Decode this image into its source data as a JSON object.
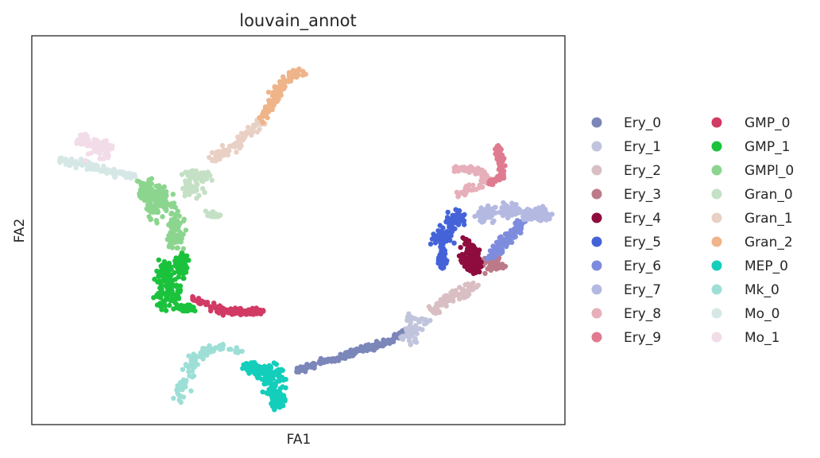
{
  "chart_data": {
    "type": "scatter",
    "title": "louvain_annot",
    "xlabel": "FA1",
    "ylabel": "FA2",
    "xlim": [
      0,
      100
    ],
    "ylim": [
      0,
      100
    ],
    "grid": false,
    "legend_placement": "right, two columns",
    "series": [
      {
        "name": "Ery_0",
        "color": "#7b86b9",
        "n": 180,
        "path": [
          [
            50,
            14
          ],
          [
            54,
            16
          ],
          [
            58,
            17
          ],
          [
            61,
            19
          ],
          [
            64,
            20
          ],
          [
            68,
            22
          ],
          [
            70,
            24
          ]
        ],
        "spread": 0.6
      },
      {
        "name": "Ery_1",
        "color": "#c0c4dc",
        "n": 60,
        "blobs": [
          [
            72,
            26,
            2.0,
            2.5
          ],
          [
            71,
            23,
            1.2,
            2.0
          ]
        ]
      },
      {
        "name": "Ery_2",
        "color": "#d9bfc3",
        "n": 90,
        "path": [
          [
            75,
            29
          ],
          [
            78,
            32
          ],
          [
            81,
            34
          ],
          [
            83,
            36
          ]
        ],
        "spread": 1.2
      },
      {
        "name": "Ery_3",
        "color": "#bc7a88",
        "n": 70,
        "blobs": [
          [
            84,
            41,
            2.2,
            2.0
          ],
          [
            87,
            41,
            1.5,
            1.5
          ]
        ]
      },
      {
        "name": "Ery_4",
        "color": "#8e0c3e",
        "n": 130,
        "blobs": [
          [
            82,
            44,
            1.6,
            3.2
          ],
          [
            83,
            41,
            1.2,
            2.0
          ]
        ]
      },
      {
        "name": "Ery_5",
        "color": "#4563d9",
        "n": 150,
        "blobs": [
          [
            77,
            48,
            1.6,
            2.2
          ],
          [
            79.5,
            53,
            1.4,
            1.8
          ],
          [
            77,
            43,
            0.6,
            2.5
          ]
        ]
      },
      {
        "name": "Ery_6",
        "color": "#7e8cde",
        "n": 110,
        "path": [
          [
            86,
            43
          ],
          [
            88,
            46
          ],
          [
            90,
            49
          ],
          [
            92,
            52
          ]
        ],
        "spread": 1.0
      },
      {
        "name": "Ery_7",
        "color": "#b4b9e2",
        "n": 190,
        "blobs": [
          [
            90,
            55,
            2.2,
            1.5
          ],
          [
            95,
            54,
            2.2,
            1.5
          ],
          [
            85,
            54,
            1.5,
            1.6
          ]
        ]
      },
      {
        "name": "Ery_8",
        "color": "#e6afb9",
        "n": 90,
        "path": [
          [
            79,
            66
          ],
          [
            82,
            66
          ],
          [
            84,
            65
          ],
          [
            86,
            62
          ],
          [
            82,
            61
          ],
          [
            80,
            59
          ]
        ],
        "spread": 0.8
      },
      {
        "name": "Ery_9",
        "color": "#e07a90",
        "n": 80,
        "path": [
          [
            87,
            72
          ],
          [
            88,
            68
          ],
          [
            88,
            64
          ],
          [
            86,
            62
          ]
        ],
        "spread": 0.6
      },
      {
        "name": "GMP_0",
        "color": "#d13a64",
        "n": 130,
        "path": [
          [
            30,
            33
          ],
          [
            34,
            30
          ],
          [
            37,
            29
          ],
          [
            41,
            29
          ],
          [
            43,
            29
          ]
        ],
        "spread": 0.8
      },
      {
        "name": "GMP_1",
        "color": "#1bc23c",
        "n": 260,
        "blobs": [
          [
            26,
            33,
            2.2,
            3.2
          ],
          [
            25,
            39,
            1.4,
            3.2
          ],
          [
            28,
            41,
            1.0,
            2.5
          ],
          [
            29,
            30,
            1.6,
            0.8
          ]
        ]
      },
      {
        "name": "GMPl_0",
        "color": "#8cd58f",
        "n": 240,
        "blobs": [
          [
            24,
            57,
            2.8,
            3.2
          ],
          [
            27,
            50,
            1.2,
            4.5
          ],
          [
            22,
            60,
            2.0,
            2.5
          ]
        ]
      },
      {
        "name": "Gran_0",
        "color": "#c4e0c5",
        "n": 120,
        "blobs": [
          [
            31,
            64,
            2.4,
            1.6
          ],
          [
            30,
            61,
            2.0,
            2.0
          ],
          [
            34,
            54,
            1.5,
            0.6
          ]
        ]
      },
      {
        "name": "Gran_1",
        "color": "#e9d0c4",
        "n": 80,
        "path": [
          [
            34,
            68
          ],
          [
            37,
            71
          ],
          [
            40,
            74
          ],
          [
            43,
            78
          ]
        ],
        "spread": 1.0
      },
      {
        "name": "Gran_2",
        "color": "#efb489",
        "n": 110,
        "path": [
          [
            43,
            79
          ],
          [
            45,
            82
          ],
          [
            46,
            86
          ],
          [
            48,
            89
          ],
          [
            51,
            91
          ]
        ],
        "spread": 0.9
      },
      {
        "name": "MEP_0",
        "color": "#13cebb",
        "n": 220,
        "blobs": [
          [
            45,
            11,
            2.2,
            3.0
          ],
          [
            46,
            6,
            1.0,
            1.8
          ],
          [
            44,
            14,
            2.4,
            1.5
          ],
          [
            41,
            15,
            1.0,
            1.0
          ]
        ]
      },
      {
        "name": "Mk_0",
        "color": "#9ddfd6",
        "n": 90,
        "path": [
          [
            27,
            6
          ],
          [
            29,
            12
          ],
          [
            31,
            18
          ],
          [
            35,
            20
          ],
          [
            39,
            19
          ]
        ],
        "spread": 1.0
      },
      {
        "name": "Mo_0",
        "color": "#d6e8e6",
        "n": 110,
        "path": [
          [
            5,
            68
          ],
          [
            10,
            67
          ],
          [
            15,
            65
          ],
          [
            19,
            64
          ]
        ],
        "spread": 0.9
      },
      {
        "name": "Mo_1",
        "color": "#f1dce8",
        "n": 110,
        "blobs": [
          [
            13,
            71,
            2.2,
            2.5
          ],
          [
            10,
            73,
            1.2,
            1.2
          ]
        ]
      }
    ]
  }
}
